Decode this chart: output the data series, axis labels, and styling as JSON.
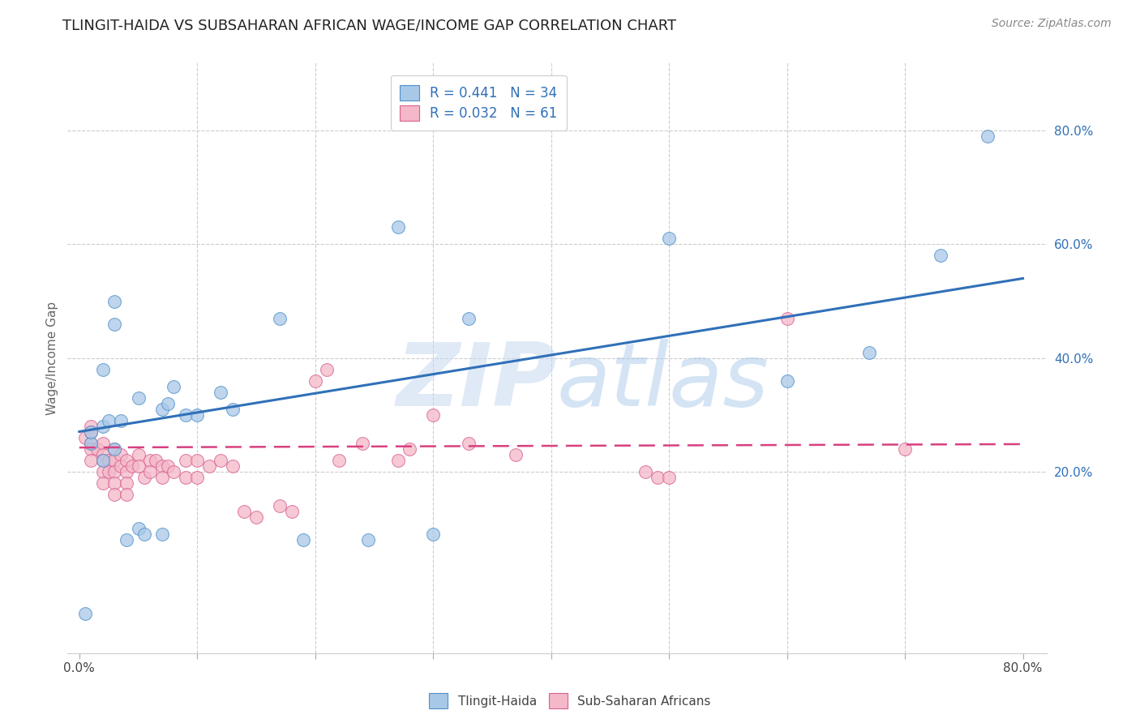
{
  "title": "TLINGIT-HAIDA VS SUBSAHARAN AFRICAN WAGE/INCOME GAP CORRELATION CHART",
  "source": "Source: ZipAtlas.com",
  "ylabel": "Wage/Income Gap",
  "watermark": "ZIPatlas",
  "xlim": [
    -0.01,
    0.82
  ],
  "ylim": [
    -0.12,
    0.92
  ],
  "xticks": [
    0.0,
    0.1,
    0.2,
    0.3,
    0.4,
    0.5,
    0.6,
    0.7,
    0.8
  ],
  "xticklabels": [
    "0.0%",
    "",
    "",
    "",
    "",
    "",
    "",
    "",
    "80.0%"
  ],
  "yticks_right": [
    0.2,
    0.4,
    0.6,
    0.8
  ],
  "ytick_right_labels": [
    "20.0%",
    "40.0%",
    "60.0%",
    "80.0%"
  ],
  "blue_R": 0.441,
  "blue_N": 34,
  "pink_R": 0.032,
  "pink_N": 61,
  "blue_color": "#a8c8e8",
  "pink_color": "#f4b8c8",
  "blue_edge_color": "#5090c8",
  "pink_edge_color": "#d86090",
  "blue_line_color": "#3070b8",
  "pink_line_color": "#d84080",
  "blue_scatter": [
    [
      0.005,
      -0.05
    ],
    [
      0.01,
      0.25
    ],
    [
      0.01,
      0.27
    ],
    [
      0.02,
      0.22
    ],
    [
      0.02,
      0.38
    ],
    [
      0.02,
      0.28
    ],
    [
      0.025,
      0.29
    ],
    [
      0.03,
      0.24
    ],
    [
      0.03,
      0.46
    ],
    [
      0.03,
      0.5
    ],
    [
      0.035,
      0.29
    ],
    [
      0.04,
      0.08
    ],
    [
      0.05,
      0.33
    ],
    [
      0.05,
      0.1
    ],
    [
      0.055,
      0.09
    ],
    [
      0.07,
      0.09
    ],
    [
      0.07,
      0.31
    ],
    [
      0.075,
      0.32
    ],
    [
      0.08,
      0.35
    ],
    [
      0.09,
      0.3
    ],
    [
      0.1,
      0.3
    ],
    [
      0.12,
      0.34
    ],
    [
      0.13,
      0.31
    ],
    [
      0.17,
      0.47
    ],
    [
      0.19,
      0.08
    ],
    [
      0.245,
      0.08
    ],
    [
      0.27,
      0.63
    ],
    [
      0.3,
      0.09
    ],
    [
      0.33,
      0.47
    ],
    [
      0.5,
      0.61
    ],
    [
      0.6,
      0.36
    ],
    [
      0.67,
      0.41
    ],
    [
      0.73,
      0.58
    ],
    [
      0.77,
      0.79
    ]
  ],
  "pink_scatter": [
    [
      0.005,
      0.26
    ],
    [
      0.01,
      0.28
    ],
    [
      0.01,
      0.27
    ],
    [
      0.01,
      0.25
    ],
    [
      0.01,
      0.24
    ],
    [
      0.01,
      0.22
    ],
    [
      0.015,
      0.24
    ],
    [
      0.02,
      0.25
    ],
    [
      0.02,
      0.23
    ],
    [
      0.02,
      0.22
    ],
    [
      0.02,
      0.2
    ],
    [
      0.02,
      0.18
    ],
    [
      0.025,
      0.22
    ],
    [
      0.025,
      0.2
    ],
    [
      0.03,
      0.24
    ],
    [
      0.03,
      0.22
    ],
    [
      0.03,
      0.2
    ],
    [
      0.03,
      0.18
    ],
    [
      0.03,
      0.16
    ],
    [
      0.035,
      0.23
    ],
    [
      0.035,
      0.21
    ],
    [
      0.04,
      0.22
    ],
    [
      0.04,
      0.2
    ],
    [
      0.04,
      0.18
    ],
    [
      0.04,
      0.16
    ],
    [
      0.045,
      0.21
    ],
    [
      0.05,
      0.23
    ],
    [
      0.05,
      0.21
    ],
    [
      0.055,
      0.19
    ],
    [
      0.06,
      0.22
    ],
    [
      0.06,
      0.2
    ],
    [
      0.065,
      0.22
    ],
    [
      0.07,
      0.21
    ],
    [
      0.07,
      0.19
    ],
    [
      0.075,
      0.21
    ],
    [
      0.08,
      0.2
    ],
    [
      0.09,
      0.22
    ],
    [
      0.09,
      0.19
    ],
    [
      0.1,
      0.22
    ],
    [
      0.1,
      0.19
    ],
    [
      0.11,
      0.21
    ],
    [
      0.12,
      0.22
    ],
    [
      0.13,
      0.21
    ],
    [
      0.14,
      0.13
    ],
    [
      0.15,
      0.12
    ],
    [
      0.17,
      0.14
    ],
    [
      0.18,
      0.13
    ],
    [
      0.2,
      0.36
    ],
    [
      0.21,
      0.38
    ],
    [
      0.22,
      0.22
    ],
    [
      0.24,
      0.25
    ],
    [
      0.27,
      0.22
    ],
    [
      0.28,
      0.24
    ],
    [
      0.3,
      0.3
    ],
    [
      0.33,
      0.25
    ],
    [
      0.37,
      0.23
    ],
    [
      0.48,
      0.2
    ],
    [
      0.49,
      0.19
    ],
    [
      0.5,
      0.19
    ],
    [
      0.6,
      0.47
    ],
    [
      0.7,
      0.24
    ]
  ],
  "blue_line_x": [
    0.0,
    0.8
  ],
  "blue_line_y_start": 0.27,
  "blue_line_y_end": 0.54,
  "pink_line_x": [
    0.0,
    0.8
  ],
  "pink_line_y_start": 0.242,
  "pink_line_y_end": 0.248,
  "background_color": "#ffffff",
  "grid_color": "#cccccc",
  "title_fontsize": 13,
  "label_fontsize": 11,
  "tick_fontsize": 11,
  "legend_fontsize": 12,
  "scatter_size": 130,
  "scatter_linewidth": 0.8
}
